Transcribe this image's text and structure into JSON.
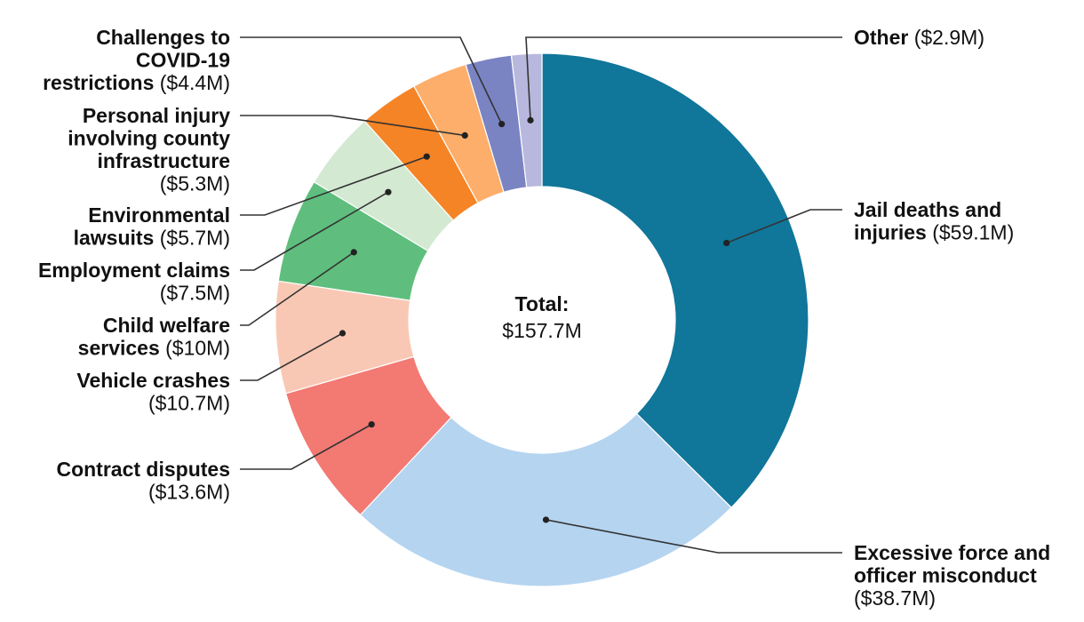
{
  "chart_data": {
    "type": "pie",
    "variant": "donut",
    "center": {
      "title": "Total:",
      "value": "$157.7M"
    },
    "slices": [
      {
        "label_lines": [
          "Jail deaths and",
          "injuries"
        ],
        "amount_text": "($59.1M)",
        "value": 59.1,
        "color": "#10769a"
      },
      {
        "label_lines": [
          "Excessive force and",
          "officer misconduct"
        ],
        "amount_text": "($38.7M)",
        "value": 38.7,
        "color": "#b5d4f0"
      },
      {
        "label_lines": [
          "Contract disputes"
        ],
        "amount_text": "($13.6M)",
        "value": 13.6,
        "color": "#f37973"
      },
      {
        "label_lines": [
          "Vehicle crashes"
        ],
        "amount_text": "($10.7M)",
        "value": 10.7,
        "color": "#f9c8b4"
      },
      {
        "label_lines": [
          "Child welfare",
          "services"
        ],
        "amount_text": "($10M)",
        "value": 10.0,
        "color": "#5fbe7d"
      },
      {
        "label_lines": [
          "Employment claims"
        ],
        "amount_text": "($7.5M)",
        "value": 7.5,
        "color": "#d3e9d2"
      },
      {
        "label_lines": [
          "Environmental",
          "lawsuits"
        ],
        "amount_text": "($5.7M)",
        "value": 5.7,
        "color": "#f58426"
      },
      {
        "label_lines": [
          "Personal injury",
          "involving county",
          "infrastructure"
        ],
        "amount_text": "($5.3M)",
        "value": 5.3,
        "color": "#fdae6a"
      },
      {
        "label_lines": [
          "Challenges to",
          "COVID-19",
          "restrictions"
        ],
        "amount_text": "($4.4M)",
        "value": 4.4,
        "color": "#7a84c3"
      },
      {
        "label_lines": [
          "Other"
        ],
        "amount_text": "($2.9M)",
        "value": 2.9,
        "color": "#b8b8de"
      }
    ]
  }
}
